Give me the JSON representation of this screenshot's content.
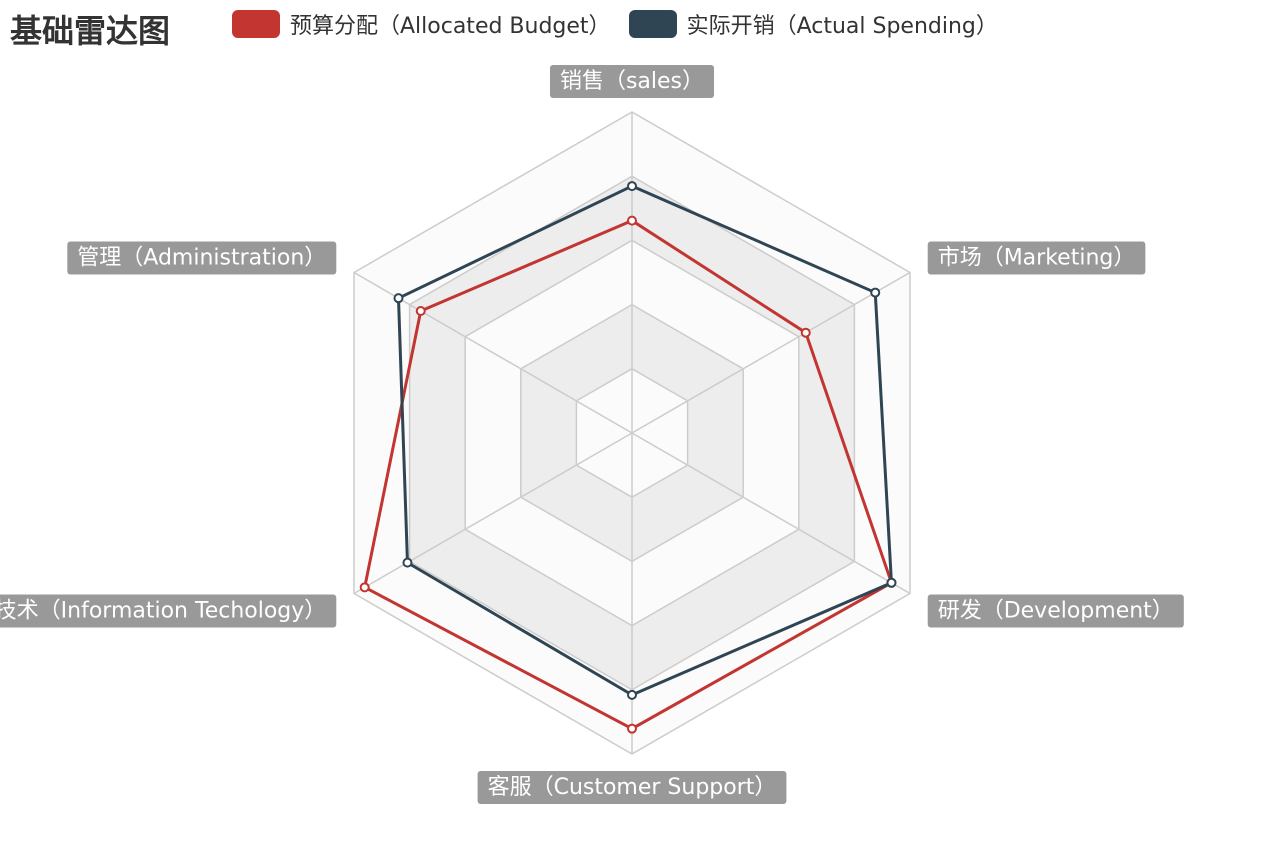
{
  "chart_data": {
    "type": "radar",
    "title": "基础雷达图",
    "indicators": [
      {
        "name": "销售（sales）",
        "max": 6500
      },
      {
        "name": "市场（Marketing）",
        "max": 16000
      },
      {
        "name": "研发（Development）",
        "max": 30000
      },
      {
        "name": "客服（Customer Support）",
        "max": 38000
      },
      {
        "name": "信息技术（Information Techology）",
        "max": 52000
      },
      {
        "name": "管理（Administration）",
        "max": 25000
      }
    ],
    "series": [
      {
        "name": "预算分配（Allocated Budget）",
        "color": "#c23531",
        "values": [
          4300,
          10000,
          28000,
          35000,
          50000,
          19000
        ]
      },
      {
        "name": "实际开销（Actual Spending）",
        "color": "#2f4554",
        "values": [
          5000,
          14000,
          28000,
          31000,
          42000,
          21000
        ]
      }
    ],
    "split_number": 5,
    "legend_position": "top"
  }
}
